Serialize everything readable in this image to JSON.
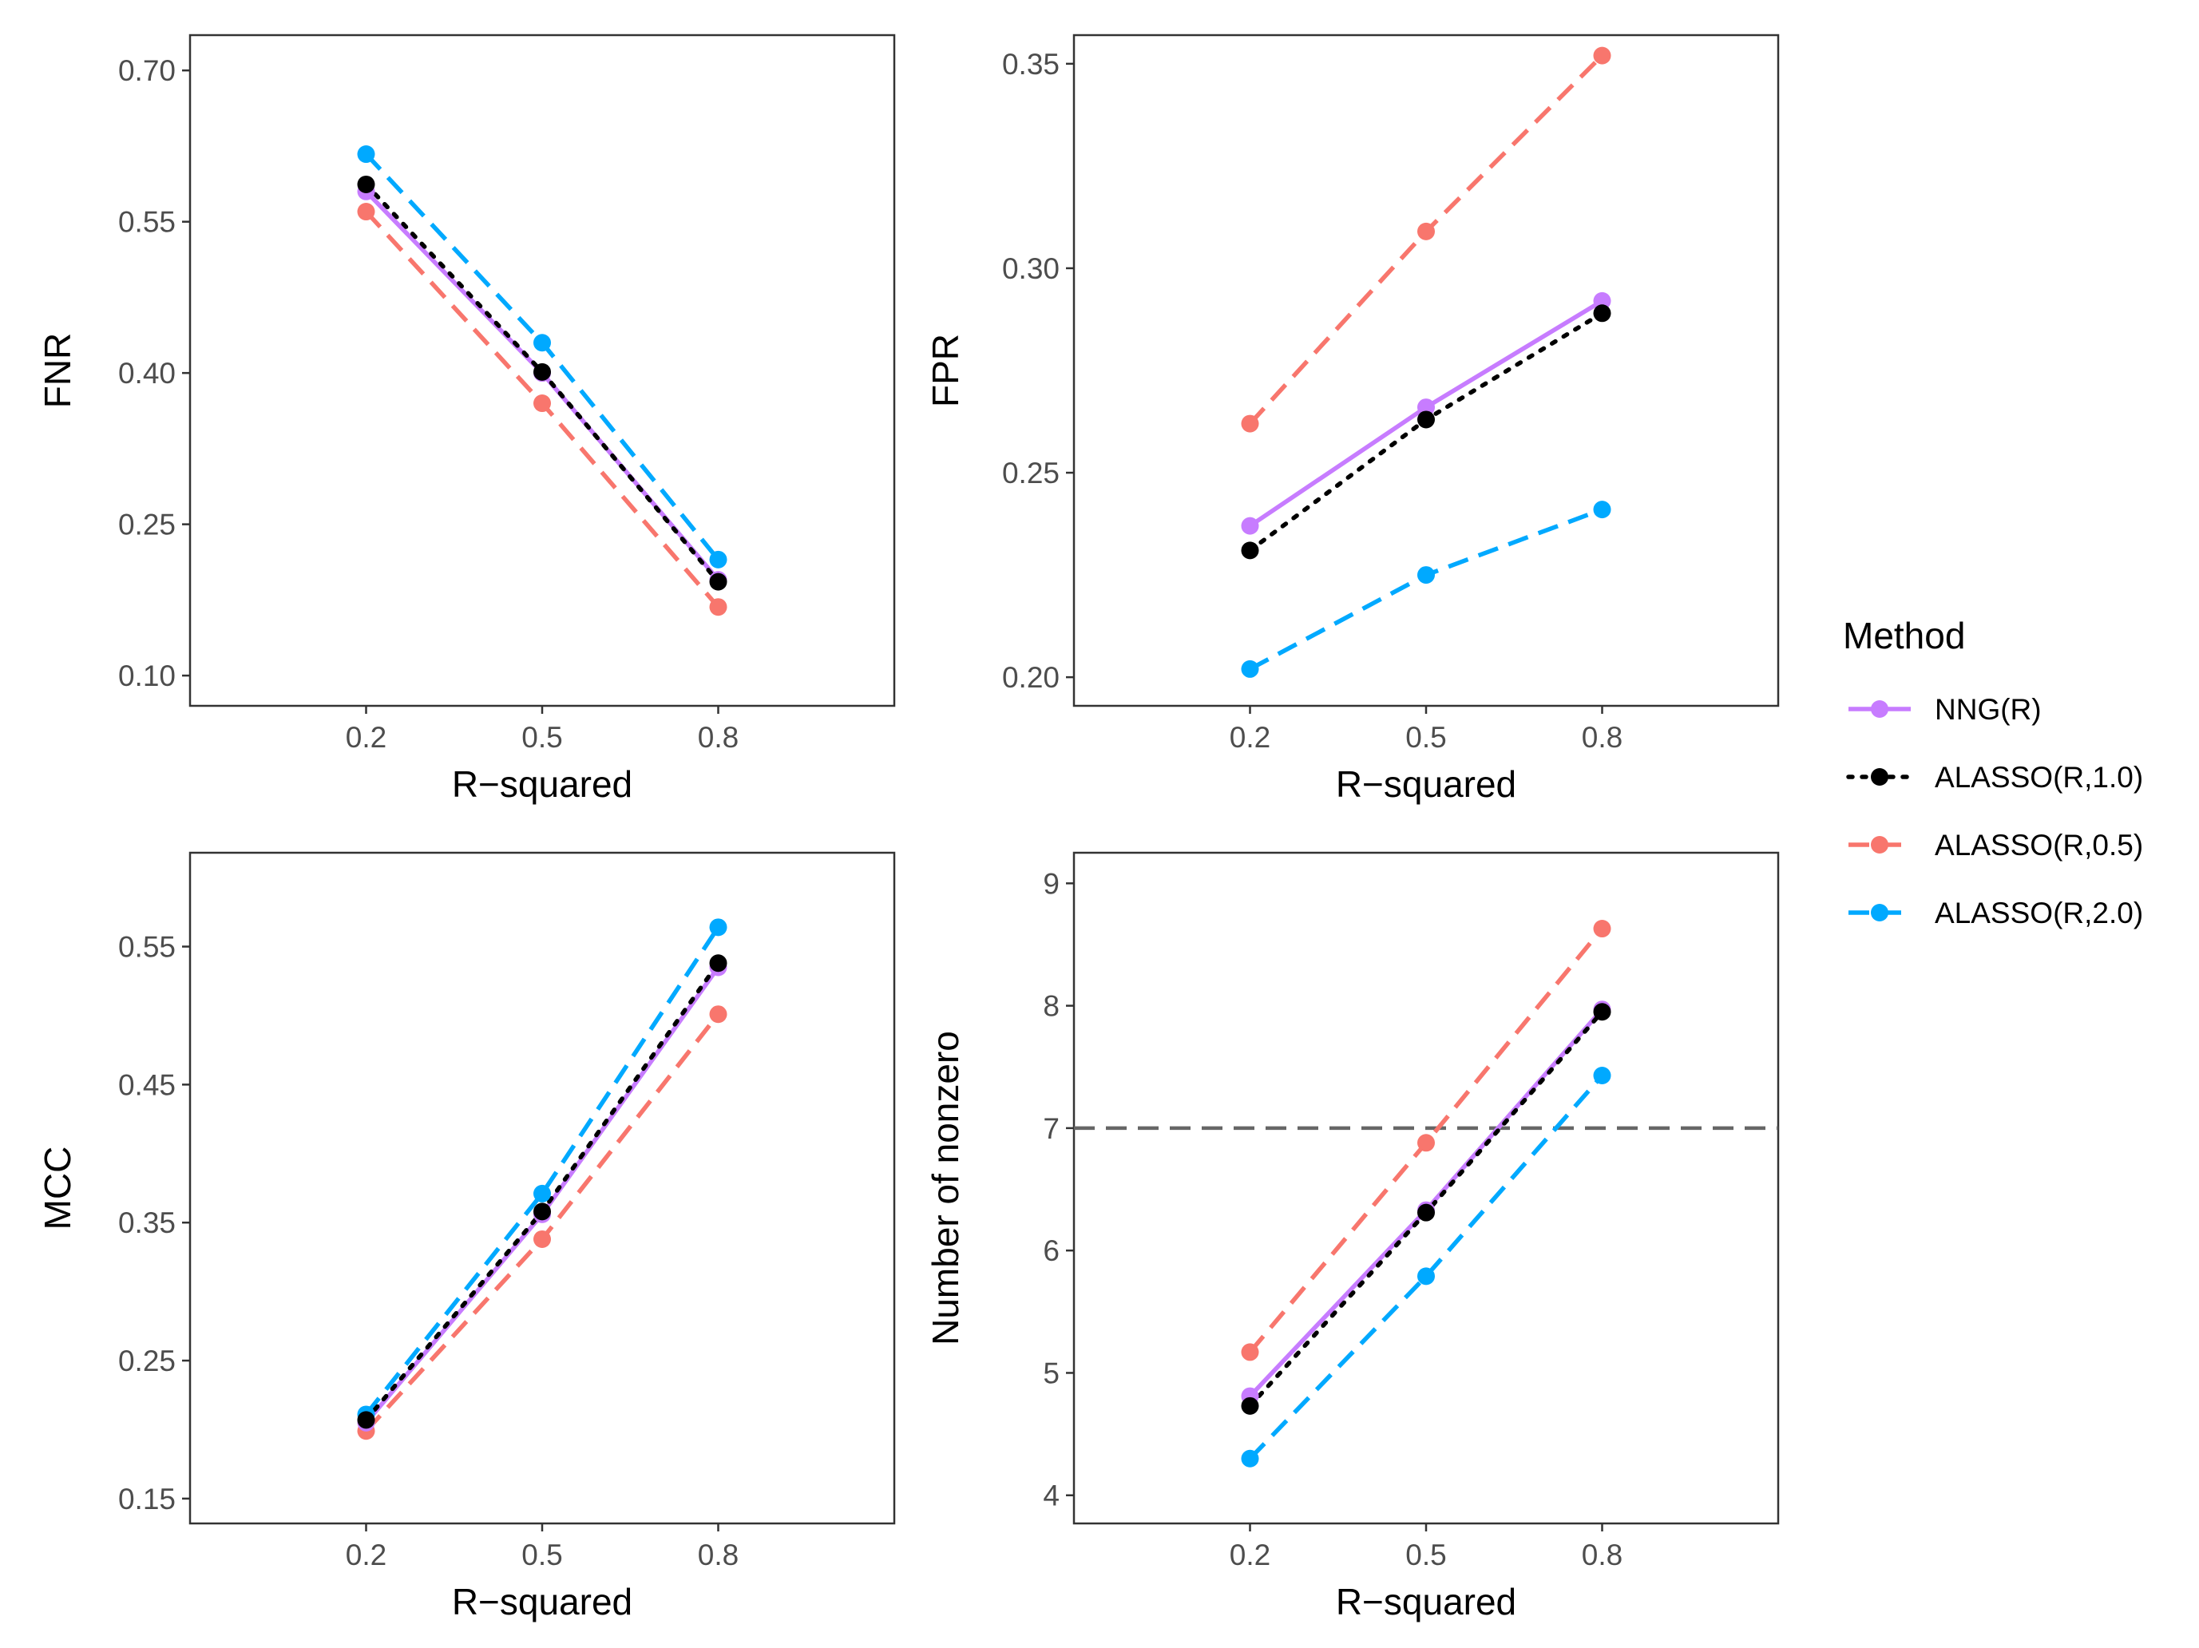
{
  "legend": {
    "title": "Method",
    "items": [
      {
        "label": "NNG(R)",
        "color": "#C77CFF",
        "dash": "solid"
      },
      {
        "label": "ALASSO(R,1.0)",
        "color": "#000000",
        "dash": "dotted"
      },
      {
        "label": "ALASSO(R,0.5)",
        "color": "#F8766D",
        "dash": "dashed"
      },
      {
        "label": "ALASSO(R,2.0)",
        "color": "#00A9FF",
        "dash": "dashed"
      }
    ]
  },
  "chart_data": [
    {
      "type": "line",
      "title": "",
      "xlabel": "R−squared",
      "ylabel": "FNR",
      "categories": [
        "0.2",
        "0.5",
        "0.8"
      ],
      "ylim": [
        0.07,
        0.735
      ],
      "yticks": [
        0.1,
        0.25,
        0.4,
        0.55,
        0.7
      ],
      "ytick_labels": [
        "0.10",
        "0.25",
        "0.40",
        "0.55",
        "0.70"
      ],
      "grid": false,
      "series": [
        {
          "name": "NNG(R)",
          "values": [
            0.58,
            0.4,
            0.195
          ]
        },
        {
          "name": "ALASSO(R,1.0)",
          "values": [
            0.587,
            0.401,
            0.193
          ]
        },
        {
          "name": "ALASSO(R,0.5)",
          "values": [
            0.56,
            0.37,
            0.168
          ]
        },
        {
          "name": "ALASSO(R,2.0)",
          "values": [
            0.617,
            0.43,
            0.215
          ]
        }
      ]
    },
    {
      "type": "line",
      "title": "",
      "xlabel": "R−squared",
      "ylabel": "FPR",
      "categories": [
        "0.2",
        "0.5",
        "0.8"
      ],
      "ylim": [
        0.193,
        0.357
      ],
      "yticks": [
        0.2,
        0.25,
        0.3,
        0.35
      ],
      "ytick_labels": [
        "0.20",
        "0.25",
        "0.30",
        "0.35"
      ],
      "grid": false,
      "series": [
        {
          "name": "NNG(R)",
          "values": [
            0.237,
            0.266,
            0.292
          ]
        },
        {
          "name": "ALASSO(R,1.0)",
          "values": [
            0.231,
            0.263,
            0.289
          ]
        },
        {
          "name": "ALASSO(R,0.5)",
          "values": [
            0.262,
            0.309,
            0.352
          ]
        },
        {
          "name": "ALASSO(R,2.0)",
          "values": [
            0.202,
            0.225,
            0.241
          ]
        }
      ]
    },
    {
      "type": "line",
      "title": "",
      "xlabel": "R−squared",
      "ylabel": "MCC",
      "categories": [
        "0.2",
        "0.5",
        "0.8"
      ],
      "ylim": [
        0.132,
        0.618
      ],
      "yticks": [
        0.15,
        0.25,
        0.35,
        0.45,
        0.55
      ],
      "ytick_labels": [
        "0.15",
        "0.25",
        "0.35",
        "0.45",
        "0.55"
      ],
      "grid": false,
      "series": [
        {
          "name": "NNG(R)",
          "values": [
            0.205,
            0.356,
            0.535
          ]
        },
        {
          "name": "ALASSO(R,1.0)",
          "values": [
            0.207,
            0.358,
            0.538
          ]
        },
        {
          "name": "ALASSO(R,0.5)",
          "values": [
            0.199,
            0.338,
            0.501
          ]
        },
        {
          "name": "ALASSO(R,2.0)",
          "values": [
            0.211,
            0.371,
            0.564
          ]
        }
      ]
    },
    {
      "type": "line",
      "title": "",
      "xlabel": "R−squared",
      "ylabel": "Number of nonzero",
      "categories": [
        "0.2",
        "0.5",
        "0.8"
      ],
      "ylim": [
        3.77,
        9.25
      ],
      "yticks": [
        4,
        5,
        6,
        7,
        8,
        9
      ],
      "ytick_labels": [
        "4",
        "5",
        "6",
        "7",
        "8",
        "9"
      ],
      "grid": false,
      "hline": 7,
      "series": [
        {
          "name": "NNG(R)",
          "values": [
            4.81,
            6.33,
            7.97
          ]
        },
        {
          "name": "ALASSO(R,1.0)",
          "values": [
            4.73,
            6.31,
            7.95
          ]
        },
        {
          "name": "ALASSO(R,0.5)",
          "values": [
            5.17,
            6.88,
            8.63
          ]
        },
        {
          "name": "ALASSO(R,2.0)",
          "values": [
            4.3,
            5.79,
            7.43
          ]
        }
      ]
    }
  ]
}
